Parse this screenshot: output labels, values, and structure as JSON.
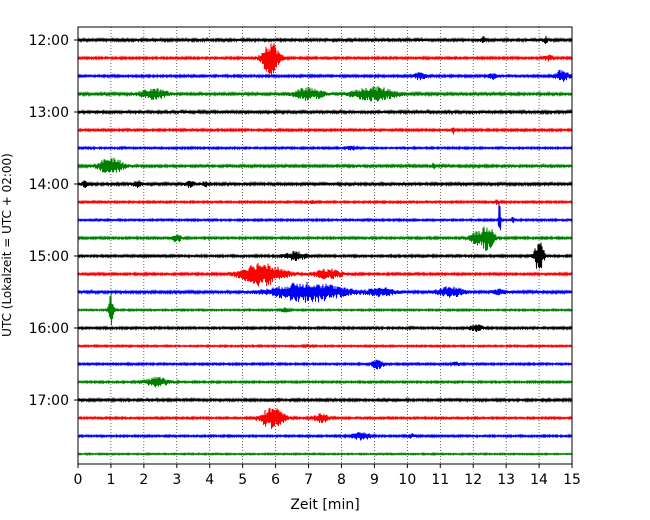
{
  "chart_data": {
    "type": "line",
    "title": "",
    "xlabel": "Zeit  [min]",
    "ylabel": "UTC (Lokalzeit = UTC + 02:00)",
    "xlim": [
      0,
      15
    ],
    "x_ticks": [
      "0",
      "1",
      "2",
      "3",
      "4",
      "5",
      "6",
      "7",
      "8",
      "9",
      "10",
      "11",
      "12",
      "13",
      "14",
      "15"
    ],
    "y_ticks": [
      "12:00",
      "13:00",
      "14:00",
      "15:00",
      "16:00",
      "17:00"
    ],
    "grid": "vertical dotted",
    "trace_colors": [
      "#000000",
      "#ff0000",
      "#0000ff",
      "#008000"
    ],
    "traces": [
      {
        "start": "12:00",
        "color": "#000000",
        "noise": 1.2,
        "events": [
          {
            "t": 12.3,
            "amp": 3,
            "dur": 0.1
          },
          {
            "t": 14.2,
            "amp": 3,
            "dur": 0.1
          }
        ]
      },
      {
        "start": "12:15",
        "color": "#ff0000",
        "noise": 1.0,
        "events": [
          {
            "t": 5.85,
            "amp": 18,
            "dur": 0.35
          },
          {
            "t": 14.3,
            "amp": 3,
            "dur": 0.2
          }
        ]
      },
      {
        "start": "12:30",
        "color": "#0000ff",
        "noise": 1.0,
        "events": [
          {
            "t": 10.4,
            "amp": 4,
            "dur": 0.25
          },
          {
            "t": 12.6,
            "amp": 3,
            "dur": 0.2
          },
          {
            "t": 14.7,
            "amp": 6,
            "dur": 0.3
          }
        ]
      },
      {
        "start": "12:45",
        "color": "#008000",
        "noise": 1.2,
        "events": [
          {
            "t": 2.3,
            "amp": 5,
            "dur": 0.6
          },
          {
            "t": 7.0,
            "amp": 6,
            "dur": 0.6
          },
          {
            "t": 9.0,
            "amp": 7,
            "dur": 0.9
          }
        ]
      },
      {
        "start": "13:00",
        "color": "#000000",
        "noise": 1.3,
        "events": []
      },
      {
        "start": "13:15",
        "color": "#ff0000",
        "noise": 1.0,
        "events": [
          {
            "t": 11.4,
            "amp": 4,
            "dur": 0.05
          }
        ]
      },
      {
        "start": "13:30",
        "color": "#0000ff",
        "noise": 0.9,
        "events": [
          {
            "t": 8.3,
            "amp": 2,
            "dur": 0.2
          }
        ]
      },
      {
        "start": "13:45",
        "color": "#008000",
        "noise": 1.1,
        "events": [
          {
            "t": 1.0,
            "amp": 9,
            "dur": 0.5
          },
          {
            "t": 10.8,
            "amp": 5,
            "dur": 0.05
          }
        ]
      },
      {
        "start": "14:00",
        "color": "#000000",
        "noise": 1.2,
        "events": [
          {
            "t": 0.2,
            "amp": 3,
            "dur": 0.15
          },
          {
            "t": 1.8,
            "amp": 3,
            "dur": 0.2
          },
          {
            "t": 3.4,
            "amp": 3,
            "dur": 0.2
          },
          {
            "t": 3.9,
            "amp": 2,
            "dur": 0.2
          }
        ]
      },
      {
        "start": "14:15",
        "color": "#ff0000",
        "noise": 0.9,
        "events": [
          {
            "t": 7.1,
            "amp": 2,
            "dur": 0.15
          },
          {
            "t": 12.7,
            "amp": 2,
            "dur": 0.15
          }
        ]
      },
      {
        "start": "14:30",
        "color": "#0000ff",
        "noise": 0.9,
        "events": [
          {
            "t": 12.8,
            "amp": 20,
            "dur": 0.05
          },
          {
            "t": 13.2,
            "amp": 3,
            "dur": 0.05
          }
        ]
      },
      {
        "start": "14:45",
        "color": "#008000",
        "noise": 1.0,
        "events": [
          {
            "t": 3.0,
            "amp": 4,
            "dur": 0.2
          },
          {
            "t": 12.1,
            "amp": 7,
            "dur": 0.3
          },
          {
            "t": 12.45,
            "amp": 14,
            "dur": 0.25
          }
        ]
      },
      {
        "start": "15:00",
        "color": "#000000",
        "noise": 1.0,
        "events": [
          {
            "t": 6.6,
            "amp": 4,
            "dur": 0.5
          },
          {
            "t": 14.0,
            "amp": 16,
            "dur": 0.2
          }
        ]
      },
      {
        "start": "15:15",
        "color": "#ff0000",
        "noise": 1.0,
        "events": [
          {
            "t": 5.6,
            "amp": 12,
            "dur": 0.9
          },
          {
            "t": 7.6,
            "amp": 5,
            "dur": 0.6
          }
        ]
      },
      {
        "start": "15:30",
        "color": "#0000ff",
        "noise": 1.2,
        "events": [
          {
            "t": 7.0,
            "amp": 10,
            "dur": 1.5
          },
          {
            "t": 9.2,
            "amp": 4,
            "dur": 0.6
          },
          {
            "t": 11.3,
            "amp": 5,
            "dur": 0.6
          },
          {
            "t": 12.8,
            "amp": 3,
            "dur": 0.3
          }
        ]
      },
      {
        "start": "15:45",
        "color": "#008000",
        "noise": 0.8,
        "events": [
          {
            "t": 1.0,
            "amp": 16,
            "dur": 0.1
          },
          {
            "t": 6.3,
            "amp": 2,
            "dur": 0.2
          }
        ]
      },
      {
        "start": "16:00",
        "color": "#000000",
        "noise": 1.0,
        "events": [
          {
            "t": 12.1,
            "amp": 3,
            "dur": 0.3
          }
        ]
      },
      {
        "start": "16:15",
        "color": "#ff0000",
        "noise": 0.8,
        "events": [
          {
            "t": 7.0,
            "amp": 1.5,
            "dur": 0.2
          }
        ]
      },
      {
        "start": "16:30",
        "color": "#0000ff",
        "noise": 0.9,
        "events": [
          {
            "t": 9.1,
            "amp": 5,
            "dur": 0.25
          },
          {
            "t": 11.5,
            "amp": 2,
            "dur": 0.2
          }
        ]
      },
      {
        "start": "16:45",
        "color": "#008000",
        "noise": 0.9,
        "events": [
          {
            "t": 2.4,
            "amp": 5,
            "dur": 0.5
          }
        ]
      },
      {
        "start": "17:00",
        "color": "#000000",
        "noise": 1.1,
        "events": []
      },
      {
        "start": "17:15",
        "color": "#ff0000",
        "noise": 0.9,
        "events": [
          {
            "t": 5.9,
            "amp": 11,
            "dur": 0.5
          },
          {
            "t": 7.4,
            "amp": 5,
            "dur": 0.3
          }
        ]
      },
      {
        "start": "17:30",
        "color": "#0000ff",
        "noise": 0.9,
        "events": [
          {
            "t": 8.6,
            "amp": 4,
            "dur": 0.4
          },
          {
            "t": 10.1,
            "amp": 2,
            "dur": 0.2
          }
        ]
      },
      {
        "start": "17:45",
        "color": "#008000",
        "noise": 0.7,
        "events": []
      }
    ]
  }
}
